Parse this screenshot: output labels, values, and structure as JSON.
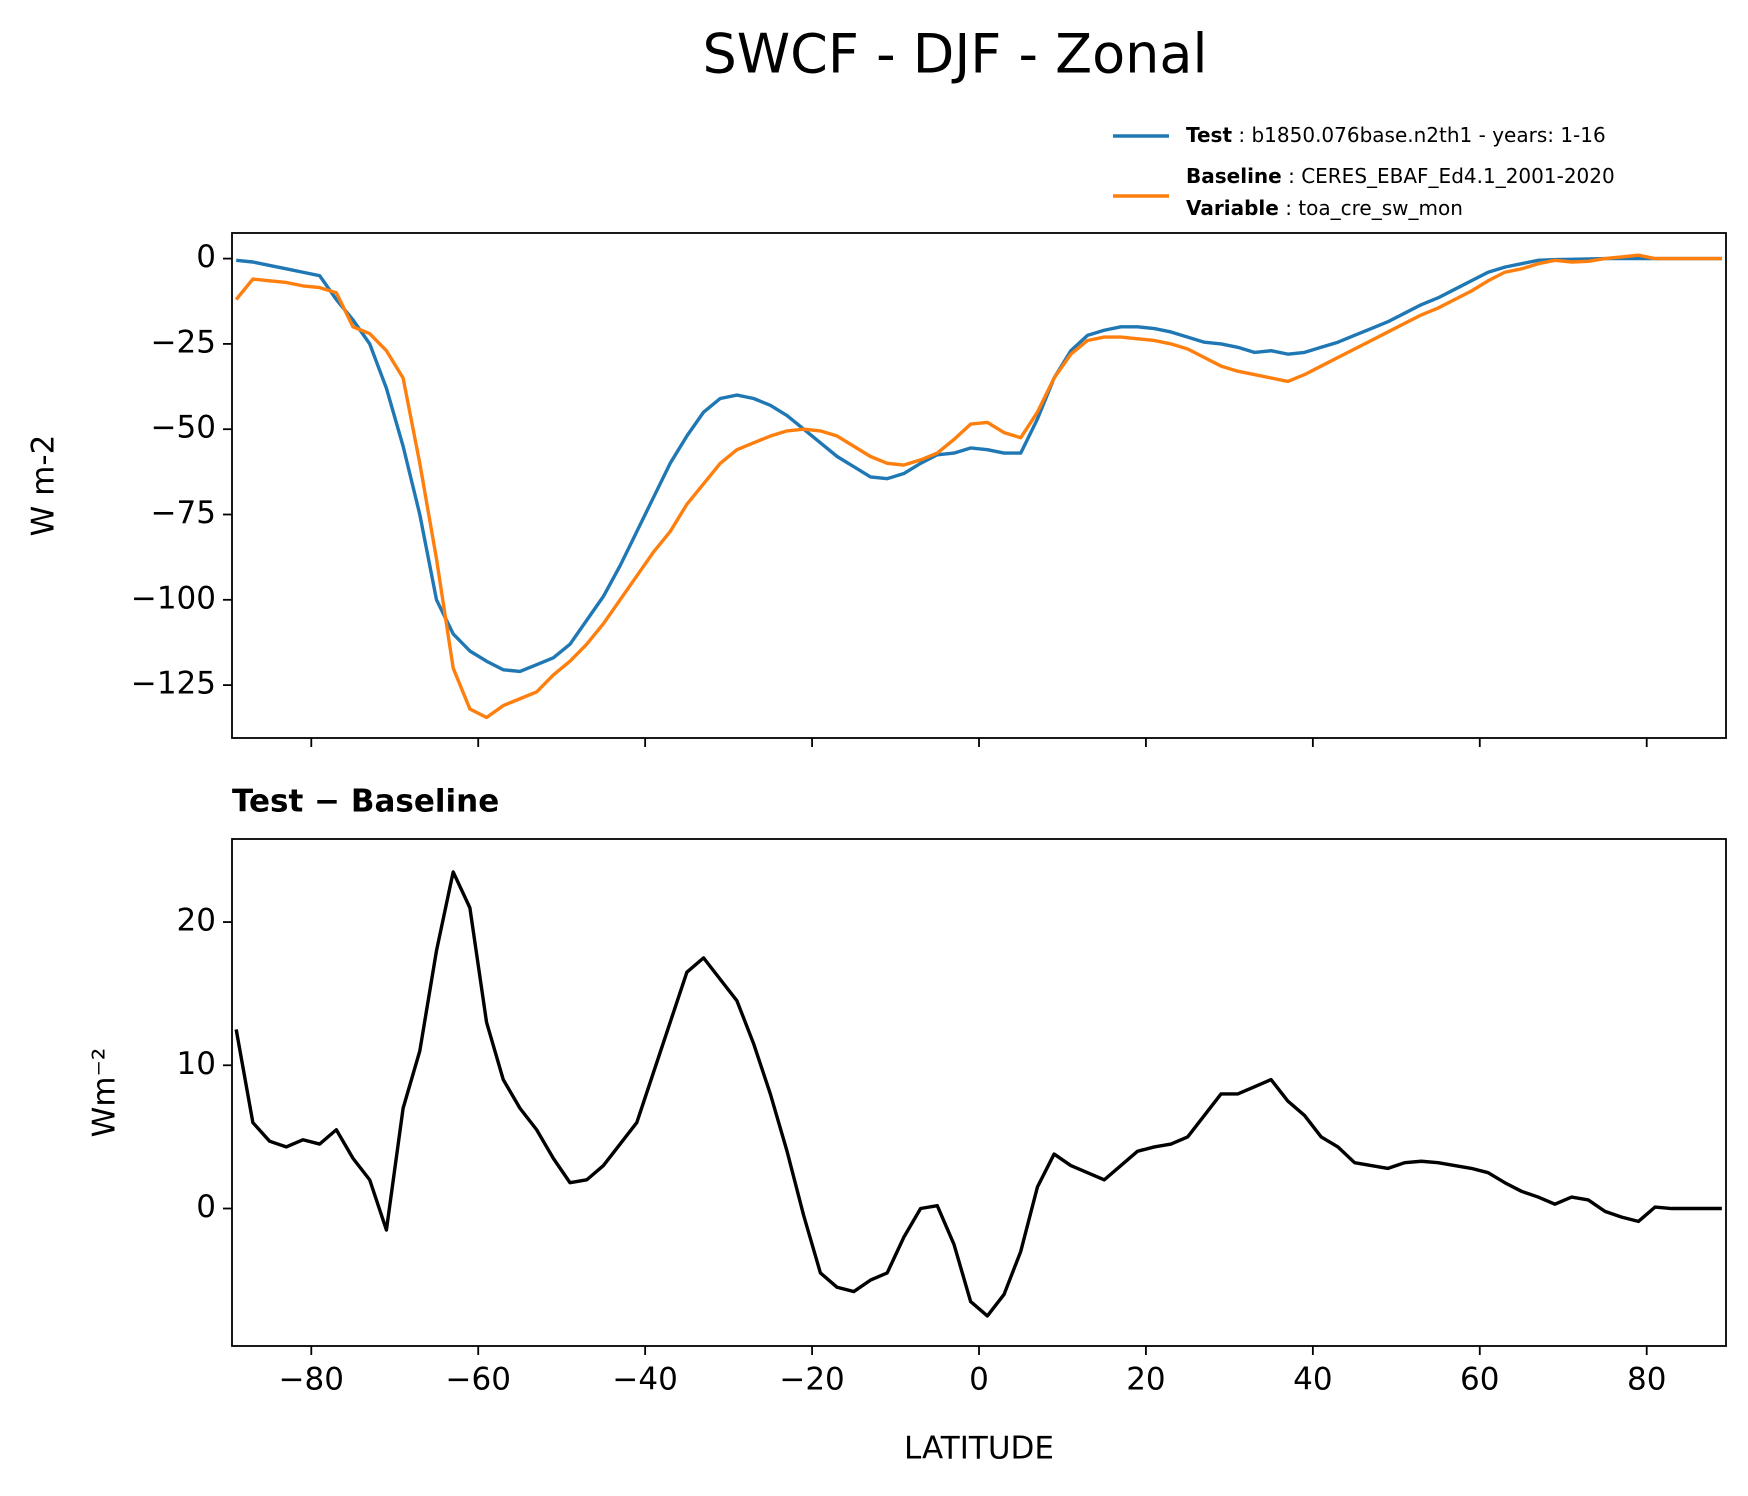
{
  "title": "SWCF - DJF - Zonal",
  "chart_data": [
    {
      "type": "line",
      "ylabel": "W m-2",
      "variable_label": "Variable",
      "variable": "toa_cre_sw_mon",
      "x": [
        -89,
        -87,
        -85,
        -83,
        -81,
        -79,
        -77,
        -75,
        -73,
        -71,
        -69,
        -67,
        -65,
        -63,
        -61,
        -59,
        -57,
        -55,
        -53,
        -51,
        -49,
        -47,
        -45,
        -43,
        -41,
        -39,
        -37,
        -35,
        -33,
        -31,
        -29,
        -27,
        -25,
        -23,
        -21,
        -19,
        -17,
        -15,
        -13,
        -11,
        -9,
        -7,
        -5,
        -3,
        -1,
        1,
        3,
        5,
        7,
        9,
        11,
        13,
        15,
        17,
        19,
        21,
        23,
        25,
        27,
        29,
        31,
        33,
        35,
        37,
        39,
        41,
        43,
        45,
        47,
        49,
        51,
        53,
        55,
        57,
        59,
        61,
        63,
        65,
        67,
        69,
        71,
        73,
        75,
        77,
        79,
        81,
        83,
        85,
        87,
        89
      ],
      "series": [
        {
          "name": "Test",
          "detail": "b1850.076base.n2th1 - years: 1-16",
          "color": "#1f77b4",
          "values": [
            -0.5,
            -1,
            -2,
            -3,
            -4,
            -5,
            -12,
            -18,
            -25,
            -38,
            -55,
            -75,
            -100,
            -110,
            -115,
            -118,
            -120.5,
            -121,
            -119,
            -117,
            -113,
            -106,
            -99,
            -90,
            -80,
            -70,
            -60,
            -52,
            -45,
            -41,
            -40,
            -41,
            -43,
            -46,
            -50,
            -54,
            -58,
            -61,
            -64,
            -64.5,
            -63,
            -60,
            -57.5,
            -57,
            -55.5,
            -56,
            -57,
            -57,
            -47,
            -35,
            -27,
            -22.5,
            -21,
            -20,
            -20,
            -20.5,
            -21.5,
            -23,
            -24.5,
            -25,
            -26,
            -27.5,
            -27,
            -28,
            -27.5,
            -26,
            -24.5,
            -22.5,
            -20.5,
            -18.5,
            -16,
            -13.5,
            -11.5,
            -9,
            -6.5,
            -4,
            -2.5,
            -1.5,
            -0.5,
            -0.3,
            -0.2,
            -0.1,
            0,
            0,
            0,
            0,
            0,
            0,
            0,
            0
          ]
        },
        {
          "name": "Baseline",
          "detail": "CERES_EBAF_Ed4.1_2001-2020",
          "color": "#ff7f0e",
          "values": [
            -12,
            -6,
            -6.5,
            -7,
            -8,
            -8.5,
            -10,
            -20,
            -22,
            -27,
            -35,
            -60,
            -88,
            -120,
            -132,
            -134.5,
            -131,
            -129,
            -127,
            -122,
            -118,
            -113,
            -107,
            -100,
            -93,
            -86,
            -80,
            -72,
            -66,
            -60,
            -56,
            -54,
            -52,
            -50.5,
            -50,
            -50.5,
            -52,
            -55,
            -58,
            -60,
            -60.5,
            -59,
            -57,
            -53,
            -48.5,
            -48,
            -51,
            -52.5,
            -45,
            -35,
            -28,
            -24,
            -23,
            -23,
            -23.5,
            -24,
            -25,
            -26.5,
            -29,
            -31.5,
            -33,
            -34,
            -35,
            -36,
            -34,
            -31.5,
            -29,
            -26.5,
            -24,
            -21.5,
            -19,
            -16.5,
            -14.5,
            -12,
            -9.5,
            -6.5,
            -4,
            -3,
            -1.5,
            -0.5,
            -1,
            -0.8,
            0,
            0.5,
            1,
            0,
            0,
            0,
            0,
            0
          ]
        }
      ],
      "xlim": [
        -89.5,
        89.5
      ],
      "xticks": [
        -80,
        -60,
        -40,
        -20,
        0,
        20,
        40,
        60,
        80
      ],
      "ylim": [
        -140.5,
        7.5
      ],
      "yticks": [
        0,
        {
          "value": -25,
          "label": "−25"
        },
        {
          "value": -50,
          "label": "−50"
        },
        {
          "value": -75,
          "label": "−75"
        },
        {
          "value": -100,
          "label": "−100"
        },
        {
          "value": -125,
          "label": "−125"
        }
      ]
    },
    {
      "type": "line",
      "title": "Test − Baseline",
      "ylabel": "Wm⁻²",
      "xlabel": "LATITUDE",
      "x": [
        -89,
        -87,
        -85,
        -83,
        -81,
        -79,
        -77,
        -75,
        -73,
        -71,
        -69,
        -67,
        -65,
        -63,
        -61,
        -59,
        -57,
        -55,
        -53,
        -51,
        -49,
        -47,
        -45,
        -43,
        -41,
        -39,
        -37,
        -35,
        -33,
        -31,
        -29,
        -27,
        -25,
        -23,
        -21,
        -19,
        -17,
        -15,
        -13,
        -11,
        -9,
        -7,
        -5,
        -3,
        -1,
        1,
        3,
        5,
        7,
        9,
        11,
        13,
        15,
        17,
        19,
        21,
        23,
        25,
        27,
        29,
        31,
        33,
        35,
        37,
        39,
        41,
        43,
        45,
        47,
        49,
        51,
        53,
        55,
        57,
        59,
        61,
        63,
        65,
        67,
        69,
        71,
        73,
        75,
        77,
        79,
        81,
        83,
        85,
        87,
        89
      ],
      "series": [
        {
          "name": "Test − Baseline",
          "color": "#000000",
          "values": [
            12.5,
            6,
            4.7,
            4.3,
            4.8,
            4.5,
            5.5,
            3.5,
            2,
            -1.5,
            7,
            11,
            18,
            23.5,
            21,
            13,
            9,
            7,
            5.5,
            3.5,
            1.8,
            2,
            3,
            4.5,
            6,
            9.5,
            13,
            16.5,
            17.5,
            16,
            14.5,
            11.5,
            8,
            4,
            -0.5,
            -4.5,
            -5.5,
            -5.8,
            -5,
            -4.5,
            -2,
            0,
            0.2,
            -2.5,
            -6.5,
            -7.5,
            -6,
            -3,
            1.5,
            3.8,
            3,
            2.5,
            2,
            3,
            4,
            4.3,
            4.5,
            5,
            6.5,
            8,
            8,
            8.5,
            9,
            7.5,
            6.5,
            5,
            4.3,
            3.2,
            3,
            2.8,
            3.2,
            3.3,
            3.2,
            3,
            2.8,
            2.5,
            1.8,
            1.2,
            0.8,
            0.3,
            0.8,
            0.6,
            -0.2,
            -0.6,
            -0.9,
            0.1,
            0,
            0,
            0,
            0
          ]
        }
      ],
      "xlim": [
        -89.5,
        89.5
      ],
      "xticks": [
        {
          "value": -80,
          "label": "−80"
        },
        {
          "value": -60,
          "label": "−60"
        },
        {
          "value": -40,
          "label": "−40"
        },
        {
          "value": -20,
          "label": "−20"
        },
        0,
        20,
        40,
        60,
        80
      ],
      "ylim": [
        -9.6,
        25.8
      ],
      "yticks": [
        0,
        10,
        20
      ]
    }
  ]
}
